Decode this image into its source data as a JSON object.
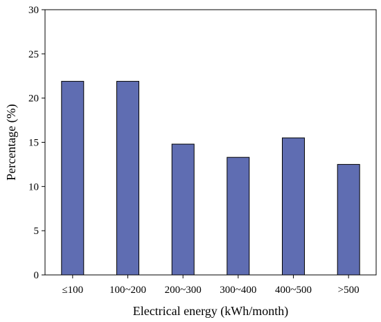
{
  "chart_data": {
    "type": "bar",
    "categories": [
      "≤100",
      "100~200",
      "200~300",
      "300~400",
      "400~500",
      ">500"
    ],
    "values": [
      21.9,
      21.9,
      14.8,
      13.3,
      15.5,
      12.5
    ],
    "xlabel": "Electrical energy (kWh/month)",
    "ylabel": "Percentage (%)",
    "ylim": [
      0,
      30
    ],
    "yticks": [
      0,
      5,
      10,
      15,
      20,
      25,
      30
    ],
    "grid": false,
    "colors": {
      "bar_fill": "#5f6db2",
      "bar_stroke": "#000000",
      "axis": "#000000"
    }
  }
}
